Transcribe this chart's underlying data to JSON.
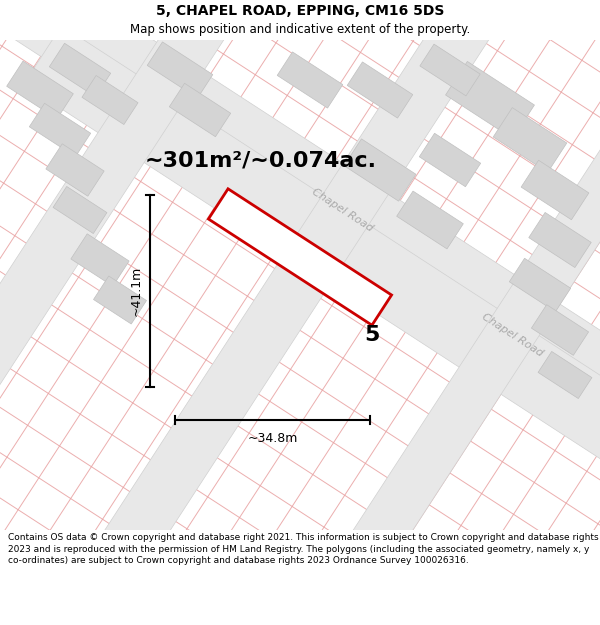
{
  "title_line1": "5, CHAPEL ROAD, EPPING, CM16 5DS",
  "title_line2": "Map shows position and indicative extent of the property.",
  "footer_text": "Contains OS data © Crown copyright and database right 2021. This information is subject to Crown copyright and database rights 2023 and is reproduced with the permission of HM Land Registry. The polygons (including the associated geometry, namely x, y co-ordinates) are subject to Crown copyright and database rights 2023 Ordnance Survey 100026316.",
  "area_label": "~301m²/~0.074ac.",
  "width_label": "~34.8m",
  "height_label": "~41.1m",
  "number_label": "5",
  "chapel_road_label1": "Chapel Road",
  "chapel_road_label2": "Chapel Road",
  "road_fill": "#e8e8e8",
  "road_edge": "#d0d0d0",
  "block_fill": "#d4d4d4",
  "block_edge": "#c0c0c0",
  "pink_color": "#e8a0a0",
  "red_poly_edge": "#cc0000",
  "white": "#ffffff",
  "bg": "#ffffff",
  "title_fontsize": 10,
  "subtitle_fontsize": 8.5,
  "area_fontsize": 16,
  "dim_fontsize": 9,
  "num_fontsize": 16,
  "footer_fontsize": 6.5
}
